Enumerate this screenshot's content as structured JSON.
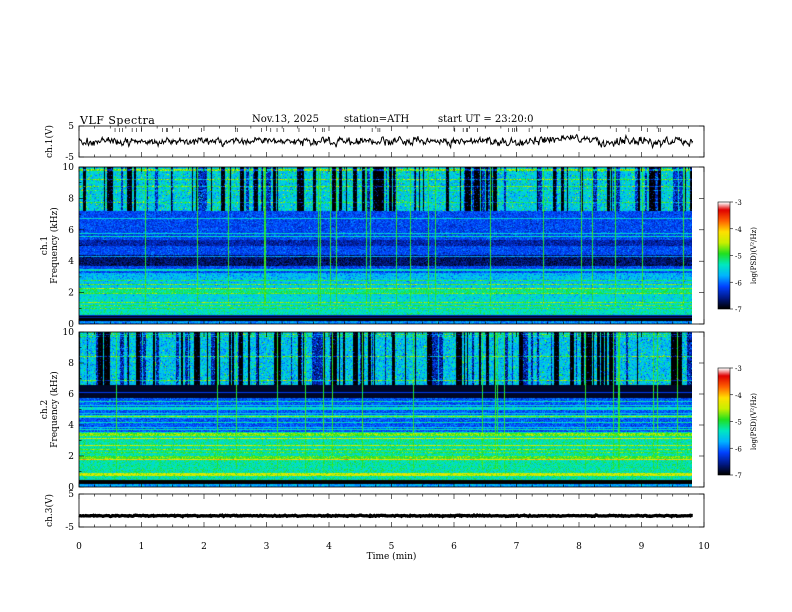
{
  "header": {
    "title": "VLF Spectra",
    "date": "Nov.13, 2025",
    "station": "station=ATH",
    "start_ut": "start UT = 23:20:0"
  },
  "colors": {
    "scale": [
      "#000000",
      "#001a8c",
      "#0040ff",
      "#00b4ff",
      "#00e8c0",
      "#20e020",
      "#c8f000",
      "#ffe000",
      "#ff6000",
      "#e00000",
      "#ffffff"
    ],
    "trace": "#000000",
    "frame": "#000000"
  },
  "chart_data": [
    {
      "type": "line",
      "name": "ch1-waveform",
      "ylabel": "ch.1(V)",
      "ylim": [
        -5,
        5
      ],
      "yticks": [
        "5",
        "-5"
      ],
      "xlim": [
        0,
        10
      ],
      "data_end": 9.82,
      "trace_amplitude": 1.2
    },
    {
      "type": "heatmap",
      "name": "ch1-spectrogram",
      "ylabel": "ch.1\nFrequency (kHz)",
      "ylim": [
        0,
        10
      ],
      "yticks": [
        "0",
        "2",
        "4",
        "6",
        "8",
        "10"
      ],
      "xlim": [
        0,
        10
      ],
      "data_end": 9.82,
      "colorbar": {
        "label": "log(PSD)(V²/Hz)",
        "range": [
          -7,
          -3
        ],
        "ticks": [
          "-3",
          "-4",
          "-5",
          "-6",
          "-7"
        ]
      }
    },
    {
      "type": "heatmap",
      "name": "ch2-spectrogram",
      "ylabel": "ch.2\nFrequency (kHz)",
      "ylim": [
        0,
        10
      ],
      "yticks": [
        "0",
        "2",
        "4",
        "6",
        "8",
        "10"
      ],
      "xlim": [
        0,
        10
      ],
      "data_end": 9.82,
      "colorbar": {
        "label": "log(PSD)(V²/Hz)",
        "range": [
          -7,
          -3
        ],
        "ticks": [
          "-3",
          "-4",
          "-5",
          "-6",
          "-7"
        ]
      }
    },
    {
      "type": "line",
      "name": "ch3-waveform",
      "ylabel": "ch.3(V)",
      "ylim": [
        -5,
        5
      ],
      "yticks": [
        "5",
        "-5"
      ],
      "xlim": [
        0,
        10
      ],
      "data_end": 9.82,
      "trace_amplitude": 0.15,
      "trace_offset": -1.6
    }
  ],
  "xaxis": {
    "label": "Time (min)",
    "ticks": [
      "0",
      "1",
      "2",
      "3",
      "4",
      "5",
      "6",
      "7",
      "8",
      "9",
      "10"
    ]
  }
}
